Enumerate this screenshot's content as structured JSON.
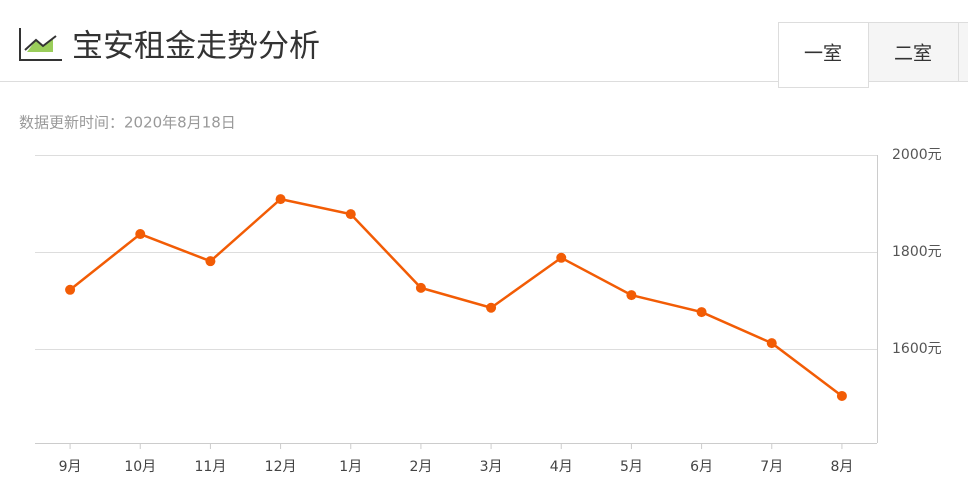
{
  "header": {
    "title": "宝安租金走势分析",
    "tabs": [
      "一室",
      "二室"
    ]
  },
  "subtitle": "数据更新时间：2020年8月18日",
  "chart_data": {
    "type": "line",
    "categories": [
      "9月",
      "10月",
      "11月",
      "12月",
      "1月",
      "2月",
      "3月",
      "4月",
      "5月",
      "6月",
      "7月",
      "8月"
    ],
    "values": [
      1722,
      1837,
      1781,
      1909,
      1878,
      1726,
      1685,
      1788,
      1711,
      1676,
      1612,
      1503
    ],
    "color": "#f25c05",
    "ylim": [
      1406,
      2000
    ],
    "yticks": [
      {
        "value": 1600,
        "label": "1600元"
      },
      {
        "value": 1800,
        "label": "1800元"
      },
      {
        "value": 2000,
        "label": "2000元"
      }
    ],
    "grid": true
  }
}
